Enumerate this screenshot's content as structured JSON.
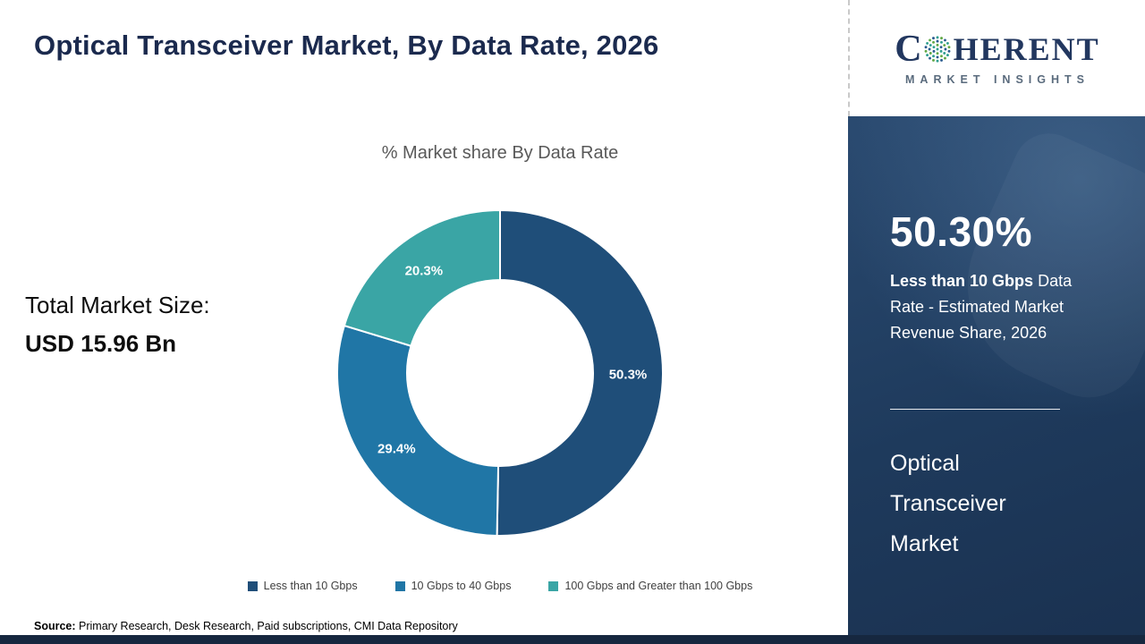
{
  "header": {
    "title": "Optical Transceiver Market, By Data Rate, 2026"
  },
  "logo": {
    "brand_first_letter": "C",
    "brand_rest": "HERENT",
    "brand_sub": "MARKET INSIGHTS"
  },
  "left_panel": {
    "total_label": "Total Market Size:",
    "total_value": "USD 15.96 Bn"
  },
  "chart_data": {
    "type": "pie",
    "donut": true,
    "title": "% Market share By Data Rate",
    "categories": [
      "Less than 10 Gbps",
      "10 Gbps to 40 Gbps",
      "100 Gbps and Greater than 100 Gbps"
    ],
    "values": [
      50.3,
      29.4,
      20.3
    ],
    "labels": [
      "50.3%",
      "29.4%",
      "20.3%"
    ],
    "colors": [
      "#1f4e79",
      "#2076a6",
      "#3aa5a5"
    ],
    "legend_position": "bottom"
  },
  "sidebar": {
    "stat_value": "50.30%",
    "stat_desc_bold": "Less than 10 Gbps",
    "stat_desc_rest": " Data Rate - Estimated Market Revenue Share, 2026",
    "product_name": "Optical\nTransceiver\nMarket"
  },
  "footer": {
    "source_label": "Source:",
    "source_text": " Primary Research, Desk Research, Paid subscriptions, CMI Data Repository"
  }
}
